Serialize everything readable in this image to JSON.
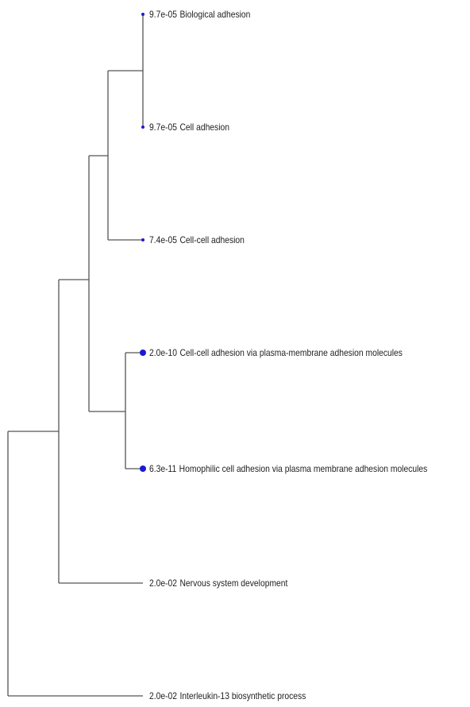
{
  "tree": {
    "line_color": "#555555",
    "node_color": "#1a1ad6",
    "leaves": [
      {
        "id": "biological-adhesion",
        "pvalue": "9.7e-05",
        "label": "Biological adhesion",
        "marker": "small"
      },
      {
        "id": "cell-adhesion",
        "pvalue": "9.7e-05",
        "label": "Cell adhesion",
        "marker": "small"
      },
      {
        "id": "cell-cell-adhesion",
        "pvalue": "7.4e-05",
        "label": "Cell-cell adhesion",
        "marker": "small"
      },
      {
        "id": "cell-cell-adhesion-plasma-membrane",
        "pvalue": "2.0e-10",
        "label": "Cell-cell adhesion via plasma-membrane adhesion molecules",
        "marker": "large"
      },
      {
        "id": "homophilic-cell-adhesion",
        "pvalue": "6.3e-11",
        "label": "Homophilic cell adhesion via plasma membrane adhesion molecules",
        "marker": "large"
      },
      {
        "id": "nervous-system-development",
        "pvalue": "2.0e-02",
        "label": "Nervous system development",
        "marker": "none"
      },
      {
        "id": "interleukin-13-biosynthetic-process",
        "pvalue": "2.0e-02",
        "label": "Interleukin-13 biosynthetic process",
        "marker": "none"
      }
    ]
  }
}
